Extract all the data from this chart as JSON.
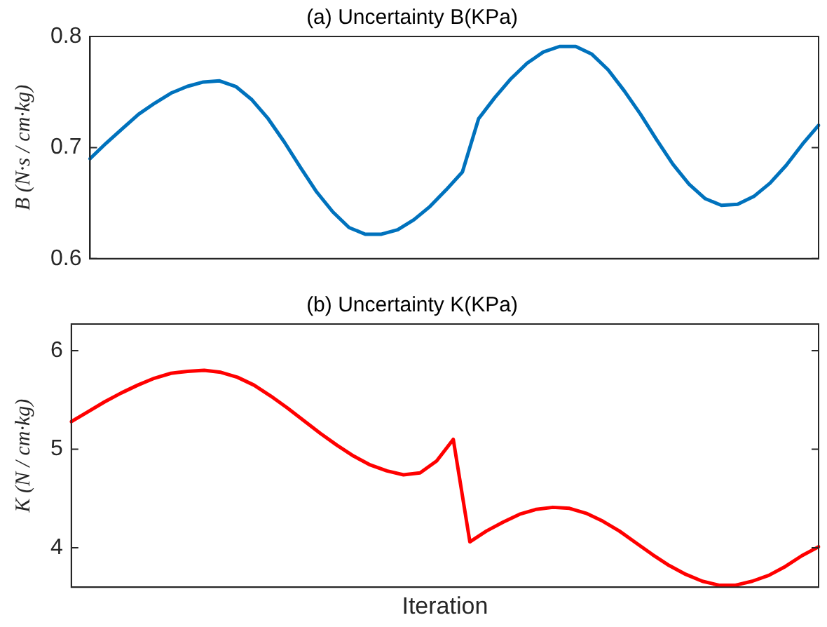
{
  "chart_data": [
    {
      "type": "line",
      "title": "(a) Uncertainty B(KPa)",
      "ylabel": "B (N·s / cm·kg)",
      "tick_labels": "y",
      "grid": false,
      "legend": false,
      "marker": "none",
      "line_style": "solid",
      "ylim": [
        0.6,
        0.8
      ],
      "yticks": [
        0.6,
        0.7,
        0.8
      ],
      "categories": [
        null,
        null,
        null,
        null,
        null,
        null,
        null,
        null,
        null,
        null,
        null,
        null,
        null,
        null,
        null,
        null,
        null,
        null,
        null,
        null,
        null,
        null,
        null,
        null,
        null,
        null,
        null,
        null,
        null,
        null,
        null,
        null,
        null,
        null,
        null,
        null,
        null,
        null,
        null,
        null,
        null,
        null,
        null,
        null,
        null,
        null
      ],
      "series": [
        {
          "color": "#0072bd",
          "values": [
            0.69,
            0.704,
            0.717,
            0.73,
            0.74,
            0.749,
            0.755,
            0.759,
            0.76,
            0.755,
            0.743,
            0.726,
            0.705,
            0.682,
            0.66,
            0.642,
            0.628,
            0.622,
            0.622,
            0.626,
            0.635,
            0.647,
            0.662,
            0.678,
            0.726,
            0.745,
            0.762,
            0.776,
            0.786,
            0.791,
            0.791,
            0.784,
            0.77,
            0.751,
            0.73,
            0.707,
            0.685,
            0.667,
            0.654,
            0.648,
            0.649,
            0.656,
            0.668,
            0.684,
            0.703,
            0.72
          ]
        }
      ]
    },
    {
      "type": "line",
      "title": "(b) Uncertainty K(KPa)",
      "ylabel": "K (N / cm·kg)",
      "xlabel": "Iteration",
      "tick_labels": "y",
      "grid": false,
      "legend": false,
      "marker": "none",
      "line_style": "solid",
      "ylim": [
        3.6,
        6.27
      ],
      "yticks": [
        4,
        5,
        6
      ],
      "categories": [
        null,
        null,
        null,
        null,
        null,
        null,
        null,
        null,
        null,
        null,
        null,
        null,
        null,
        null,
        null,
        null,
        null,
        null,
        null,
        null,
        null,
        null,
        null,
        null,
        null,
        null,
        null,
        null,
        null,
        null,
        null,
        null,
        null,
        null,
        null,
        null,
        null,
        null,
        null,
        null,
        null,
        null,
        null,
        null,
        null,
        null
      ],
      "series": [
        {
          "color": "#ff0000",
          "values": [
            5.28,
            5.38,
            5.48,
            5.57,
            5.65,
            5.72,
            5.77,
            5.79,
            5.8,
            5.78,
            5.73,
            5.65,
            5.54,
            5.42,
            5.29,
            5.16,
            5.04,
            4.93,
            4.84,
            4.78,
            4.74,
            4.76,
            4.88,
            5.1,
            4.06,
            4.17,
            4.26,
            4.34,
            4.39,
            4.41,
            4.4,
            4.35,
            4.27,
            4.17,
            4.05,
            3.93,
            3.82,
            3.73,
            3.66,
            3.62,
            3.62,
            3.66,
            3.72,
            3.81,
            3.92,
            4.01
          ]
        }
      ]
    }
  ]
}
